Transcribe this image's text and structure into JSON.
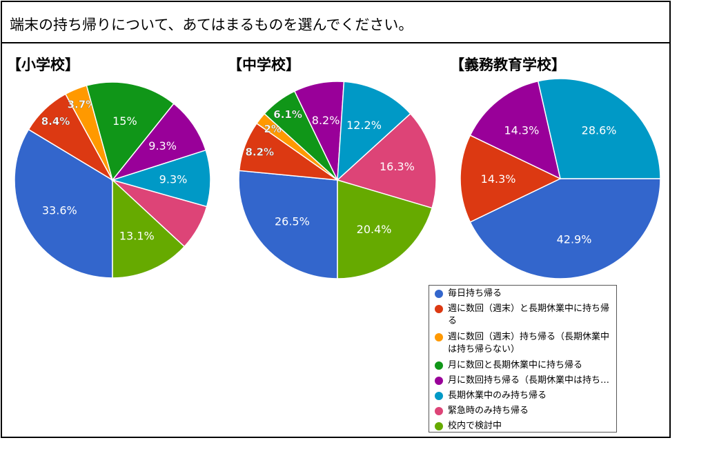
{
  "question": "端末の持ち帰りについて、あてはまるものを選んでください。",
  "categories": [
    "毎日持ち帰る",
    "週に数回（週末）と長期休業中に持ち帰る",
    "週に数回（週末）持ち帰る（長期休業中は持ち帰らない）",
    "月に数回と長期休業中に持ち帰る",
    "月に数回持ち帰る（長期休業中は持ち…",
    "長期休業中のみ持ち帰る",
    "緊急時のみ持ち帰る",
    "校内で検討中"
  ],
  "colors": [
    "#3366cc",
    "#dc3912",
    "#ff9900",
    "#109618",
    "#990099",
    "#0099c6",
    "#dd4477",
    "#66aa00"
  ],
  "chart_data": [
    {
      "type": "pie",
      "title": "【小学校】",
      "values": [
        33.6,
        8.4,
        3.7,
        15,
        9.3,
        9.3,
        7.5,
        13.1
      ],
      "labels": [
        "33.6%",
        "8.4%",
        "3.7%",
        "15%",
        "9.3%",
        "9.3%",
        "",
        "13.1%"
      ]
    },
    {
      "type": "pie",
      "title": "【中学校】",
      "values": [
        26.5,
        8.2,
        2,
        6.1,
        8.2,
        12.2,
        16.3,
        20.4
      ],
      "labels": [
        "26.5%",
        "8.2%",
        "2%",
        "6.1%",
        "8.2%",
        "12.2%",
        "16.3%",
        "20.4%"
      ]
    },
    {
      "type": "pie",
      "title": "【義務教育学校】",
      "values": [
        42.9,
        14.3,
        0,
        0,
        14.3,
        28.6,
        0,
        0
      ],
      "labels": [
        "42.9%",
        "14.3%",
        "",
        "",
        "14.3%",
        "28.6%",
        "",
        ""
      ]
    }
  ]
}
